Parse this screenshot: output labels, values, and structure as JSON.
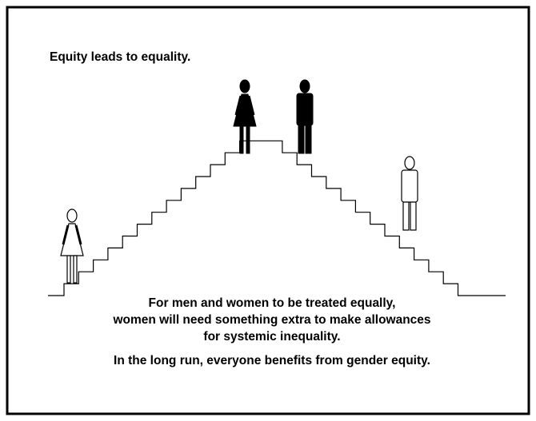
{
  "title": "Equity leads to equality.",
  "caption": [
    "For men and women to be treated equally,",
    "women will need something extra to make allowances",
    "for systemic inequality."
  ],
  "footer": "In the long run, everyone benefits from gender equity."
}
